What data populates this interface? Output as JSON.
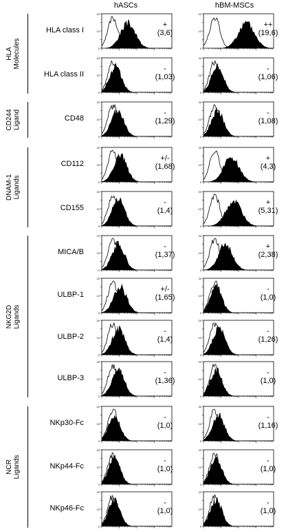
{
  "columns": [
    "hASCs",
    "hBM-MSCs"
  ],
  "groups": [
    {
      "label": [
        "HLA",
        "Molecules"
      ],
      "rows": [
        0,
        1
      ]
    },
    {
      "label": [
        "CD244",
        "Ligand"
      ],
      "rows": [
        2,
        2
      ]
    },
    {
      "label": [
        "DNAM-1",
        "Ligands"
      ],
      "rows": [
        3,
        4
      ]
    },
    {
      "label": [
        "NKG2D",
        "Ligands"
      ],
      "rows": [
        5,
        8
      ]
    },
    {
      "label": [
        "NCR",
        "Ligands"
      ],
      "rows": [
        9,
        11
      ]
    }
  ],
  "rows": [
    {
      "marker": "HLA class I",
      "hASCs": {
        "grade": "+",
        "ratio": "(3,6)"
      },
      "hBMMSCs": {
        "grade": "++",
        "ratio": "(19,6)"
      }
    },
    {
      "marker": "HLA class II",
      "hASCs": {
        "grade": "-",
        "ratio": "(1,03)"
      },
      "hBMMSCs": {
        "grade": "-",
        "ratio": "(1,06)"
      }
    },
    {
      "marker": "CD48",
      "hASCs": {
        "grade": "-",
        "ratio": "(1,29)"
      },
      "hBMMSCs": {
        "grade": "-",
        "ratio": "(1,08)"
      }
    },
    {
      "marker": "CD112",
      "hASCs": {
        "grade": "+/-",
        "ratio": "(1,68)"
      },
      "hBMMSCs": {
        "grade": "+",
        "ratio": "(4,3)"
      }
    },
    {
      "marker": "CD155",
      "hASCs": {
        "grade": "-",
        "ratio": "(1,4)"
      },
      "hBMMSCs": {
        "grade": "+",
        "ratio": "(5,31)"
      }
    },
    {
      "marker": "MICA/B",
      "hASCs": {
        "grade": "-",
        "ratio": "(1,37)"
      },
      "hBMMSCs": {
        "grade": "+",
        "ratio": "(2,38)"
      }
    },
    {
      "marker": "ULBP-1",
      "hASCs": {
        "grade": "+/-",
        "ratio": "(1,65)"
      },
      "hBMMSCs": {
        "grade": "-",
        "ratio": "(1,0)"
      }
    },
    {
      "marker": "ULBP-2",
      "hASCs": {
        "grade": "-",
        "ratio": "(1,4)"
      },
      "hBMMSCs": {
        "grade": "-",
        "ratio": "(1,26)"
      }
    },
    {
      "marker": "ULBP-3",
      "hASCs": {
        "grade": "-",
        "ratio": "(1,36)"
      },
      "hBMMSCs": {
        "grade": "-",
        "ratio": "(1,0)"
      }
    },
    {
      "marker": "NKp30-Fc",
      "hASCs": {
        "grade": "-",
        "ratio": "(1,0)"
      },
      "hBMMSCs": {
        "grade": "-",
        "ratio": "(1,16)"
      }
    },
    {
      "marker": "NKp44-Fc",
      "hASCs": {
        "grade": "-",
        "ratio": "(1,0)"
      },
      "hBMMSCs": {
        "grade": "-",
        "ratio": "(1,0)"
      }
    },
    {
      "marker": "NKp46-Fc",
      "hASCs": {
        "grade": "-",
        "ratio": "(1,0)"
      },
      "hBMMSCs": {
        "grade": "-",
        "ratio": "(1,0)"
      }
    }
  ],
  "axis_ticks": [
    "20",
    "",
    "10",
    "",
    "0"
  ],
  "colors": {
    "filled_histogram": "#000000",
    "isotype_outline": "#000000",
    "background": "#ffffff"
  }
}
